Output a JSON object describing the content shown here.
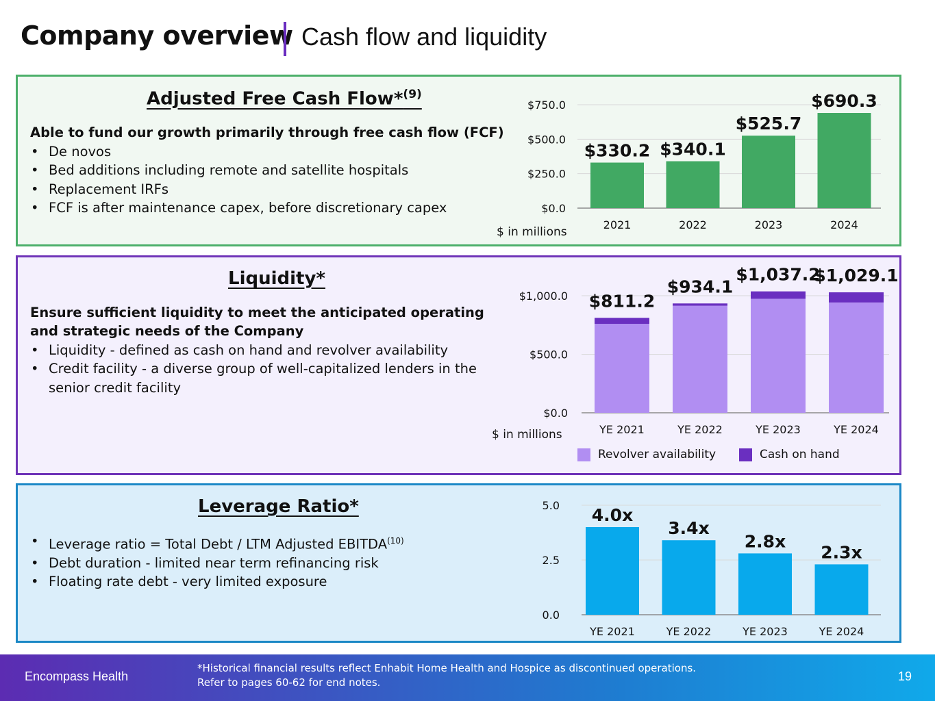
{
  "header": {
    "title": "Company overview",
    "subtitle": "Cash flow and liquidity"
  },
  "fcf": {
    "heading": "Adjusted Free Cash Flow*",
    "heading_sup": "(9)",
    "lead": "Able to fund our growth primarily through free cash flow (FCF)",
    "bullets": [
      "De novos",
      "Bed additions including remote and satellite hospitals",
      "Replacement IRFs",
      "FCF is after maintenance capex, before discretionary capex"
    ],
    "unit": "$ in millions"
  },
  "liquidity": {
    "heading": "Liquidity*",
    "lead": "Ensure sufficient liquidity to meet the anticipated operating and strategic needs of the Company",
    "bullets": [
      "Liquidity - defined as cash on hand and revolver availability",
      "Credit facility - a diverse group of well-capitalized lenders in the senior credit facility"
    ],
    "unit": "$ in millions"
  },
  "leverage": {
    "heading": "Leverage Ratio*",
    "bullet1": "Leverage ratio = Total Debt / LTM Adjusted EBITDA",
    "bullet1_sup": "(10)",
    "bullet2": "Debt duration - limited near term refinancing risk",
    "bullet3": "Floating rate debt - very limited exposure"
  },
  "footer": {
    "brand": "Encompass Health",
    "note_line1": "*Historical financial results reflect Enhabit Home Health and Hospice as discontinued operations.",
    "note_line2": "Refer to pages 60-62 for end notes.",
    "page": "19"
  },
  "chart_data": [
    {
      "id": "fcf",
      "type": "bar",
      "title": "Adjusted Free Cash Flow",
      "categories": [
        "2021",
        "2022",
        "2023",
        "2024"
      ],
      "values": [
        330.2,
        340.1,
        525.7,
        690.3
      ],
      "labels": [
        "$330.2",
        "$340.1",
        "$525.7",
        "$690.3"
      ],
      "yticks": [
        0,
        250,
        500,
        750
      ],
      "ytick_labels": [
        "$0.0",
        "$250.0",
        "$500.0",
        "$750.0"
      ],
      "ylim": [
        0,
        750
      ],
      "ylabel": "$ in millions",
      "color": "#41a963",
      "grid": true
    },
    {
      "id": "liq",
      "type": "bar",
      "stacked": true,
      "title": "Liquidity",
      "categories": [
        "YE 2021",
        "YE 2022",
        "YE 2023",
        "YE 2024"
      ],
      "series": [
        {
          "name": "Revolver availability",
          "values": [
            759.6,
            914.5,
            974.0,
            942.3
          ],
          "color": "#b18ef2"
        },
        {
          "name": "Cash on hand",
          "values": [
            51.6,
            19.6,
            63.2,
            86.8
          ],
          "color": "#6a2fc0"
        }
      ],
      "totals": [
        811.2,
        934.1,
        1037.2,
        1029.1
      ],
      "labels": [
        "$811.2",
        "$934.1",
        "$1,037.2",
        "$1,029.1"
      ],
      "yticks": [
        0,
        500,
        1000
      ],
      "ytick_labels": [
        "$0.0",
        "$500.0",
        "$1,000.0"
      ],
      "ylim": [
        0,
        1000
      ],
      "ylabel": "$ in millions",
      "legend": "bottom",
      "grid": true
    },
    {
      "id": "lev",
      "type": "bar",
      "title": "Leverage Ratio",
      "categories": [
        "YE 2021",
        "YE 2022",
        "YE 2023",
        "YE 2024"
      ],
      "values": [
        4.0,
        3.4,
        2.8,
        2.3
      ],
      "labels": [
        "4.0x",
        "3.4x",
        "2.8x",
        "2.3x"
      ],
      "yticks": [
        0,
        2.5,
        5
      ],
      "ytick_labels": [
        "0.0",
        "2.5",
        "5.0"
      ],
      "ylim": [
        0,
        5
      ],
      "color": "#08a9ec",
      "grid": true
    }
  ]
}
